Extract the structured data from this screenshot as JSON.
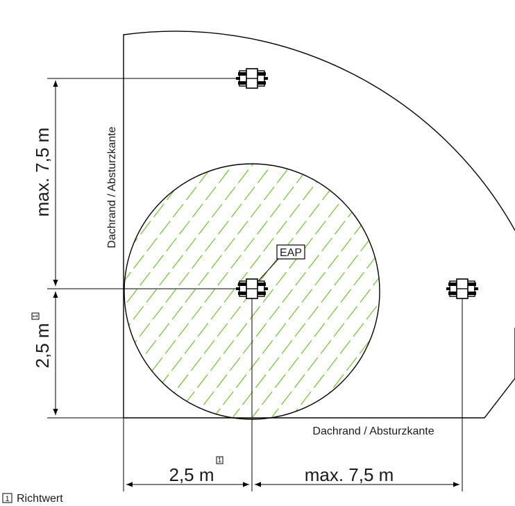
{
  "labels": {
    "dim_vertical_top": "max. 7,5 m",
    "dim_vertical_bottom": "2,5 m",
    "dim_horizontal_left": "2,5 m",
    "dim_horizontal_right": "max. 7,5 m",
    "edge_vertical": "Dachrand / Absturzkante",
    "edge_horizontal": "Dachrand / Absturzkante",
    "eap": "EAP",
    "footnote_marker": "1",
    "legend_number": "1",
    "legend_text": "Richtwert"
  },
  "colors": {
    "hatch": "#7bc142",
    "lines": "#000000"
  }
}
